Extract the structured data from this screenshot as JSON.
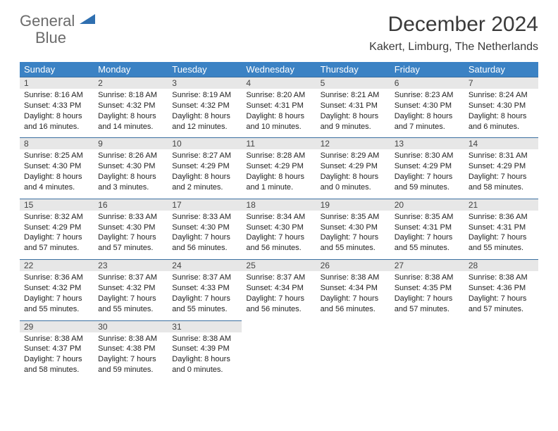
{
  "logo": {
    "word1": "General",
    "word2": "Blue"
  },
  "title": "December 2024",
  "location": "Kakert, Limburg, The Netherlands",
  "colors": {
    "header_bg": "#3b82c4",
    "header_text": "#ffffff",
    "daynum_bg": "#e7e7e7",
    "rule": "#3b6fa0",
    "logo_gray": "#6b6b6b",
    "logo_blue": "#2f78bd"
  },
  "weekdays": [
    "Sunday",
    "Monday",
    "Tuesday",
    "Wednesday",
    "Thursday",
    "Friday",
    "Saturday"
  ],
  "weeks": [
    [
      {
        "n": "1",
        "sr": "8:16 AM",
        "ss": "4:33 PM",
        "dl": "8 hours and 16 minutes."
      },
      {
        "n": "2",
        "sr": "8:18 AM",
        "ss": "4:32 PM",
        "dl": "8 hours and 14 minutes."
      },
      {
        "n": "3",
        "sr": "8:19 AM",
        "ss": "4:32 PM",
        "dl": "8 hours and 12 minutes."
      },
      {
        "n": "4",
        "sr": "8:20 AM",
        "ss": "4:31 PM",
        "dl": "8 hours and 10 minutes."
      },
      {
        "n": "5",
        "sr": "8:21 AM",
        "ss": "4:31 PM",
        "dl": "8 hours and 9 minutes."
      },
      {
        "n": "6",
        "sr": "8:23 AM",
        "ss": "4:30 PM",
        "dl": "8 hours and 7 minutes."
      },
      {
        "n": "7",
        "sr": "8:24 AM",
        "ss": "4:30 PM",
        "dl": "8 hours and 6 minutes."
      }
    ],
    [
      {
        "n": "8",
        "sr": "8:25 AM",
        "ss": "4:30 PM",
        "dl": "8 hours and 4 minutes."
      },
      {
        "n": "9",
        "sr": "8:26 AM",
        "ss": "4:30 PM",
        "dl": "8 hours and 3 minutes."
      },
      {
        "n": "10",
        "sr": "8:27 AM",
        "ss": "4:29 PM",
        "dl": "8 hours and 2 minutes."
      },
      {
        "n": "11",
        "sr": "8:28 AM",
        "ss": "4:29 PM",
        "dl": "8 hours and 1 minute."
      },
      {
        "n": "12",
        "sr": "8:29 AM",
        "ss": "4:29 PM",
        "dl": "8 hours and 0 minutes."
      },
      {
        "n": "13",
        "sr": "8:30 AM",
        "ss": "4:29 PM",
        "dl": "7 hours and 59 minutes."
      },
      {
        "n": "14",
        "sr": "8:31 AM",
        "ss": "4:29 PM",
        "dl": "7 hours and 58 minutes."
      }
    ],
    [
      {
        "n": "15",
        "sr": "8:32 AM",
        "ss": "4:29 PM",
        "dl": "7 hours and 57 minutes."
      },
      {
        "n": "16",
        "sr": "8:33 AM",
        "ss": "4:30 PM",
        "dl": "7 hours and 57 minutes."
      },
      {
        "n": "17",
        "sr": "8:33 AM",
        "ss": "4:30 PM",
        "dl": "7 hours and 56 minutes."
      },
      {
        "n": "18",
        "sr": "8:34 AM",
        "ss": "4:30 PM",
        "dl": "7 hours and 56 minutes."
      },
      {
        "n": "19",
        "sr": "8:35 AM",
        "ss": "4:30 PM",
        "dl": "7 hours and 55 minutes."
      },
      {
        "n": "20",
        "sr": "8:35 AM",
        "ss": "4:31 PM",
        "dl": "7 hours and 55 minutes."
      },
      {
        "n": "21",
        "sr": "8:36 AM",
        "ss": "4:31 PM",
        "dl": "7 hours and 55 minutes."
      }
    ],
    [
      {
        "n": "22",
        "sr": "8:36 AM",
        "ss": "4:32 PM",
        "dl": "7 hours and 55 minutes."
      },
      {
        "n": "23",
        "sr": "8:37 AM",
        "ss": "4:32 PM",
        "dl": "7 hours and 55 minutes."
      },
      {
        "n": "24",
        "sr": "8:37 AM",
        "ss": "4:33 PM",
        "dl": "7 hours and 55 minutes."
      },
      {
        "n": "25",
        "sr": "8:37 AM",
        "ss": "4:34 PM",
        "dl": "7 hours and 56 minutes."
      },
      {
        "n": "26",
        "sr": "8:38 AM",
        "ss": "4:34 PM",
        "dl": "7 hours and 56 minutes."
      },
      {
        "n": "27",
        "sr": "8:38 AM",
        "ss": "4:35 PM",
        "dl": "7 hours and 57 minutes."
      },
      {
        "n": "28",
        "sr": "8:38 AM",
        "ss": "4:36 PM",
        "dl": "7 hours and 57 minutes."
      }
    ],
    [
      {
        "n": "29",
        "sr": "8:38 AM",
        "ss": "4:37 PM",
        "dl": "7 hours and 58 minutes."
      },
      {
        "n": "30",
        "sr": "8:38 AM",
        "ss": "4:38 PM",
        "dl": "7 hours and 59 minutes."
      },
      {
        "n": "31",
        "sr": "8:38 AM",
        "ss": "4:39 PM",
        "dl": "8 hours and 0 minutes."
      },
      null,
      null,
      null,
      null
    ]
  ],
  "labels": {
    "sunrise": "Sunrise: ",
    "sunset": "Sunset: ",
    "daylight": "Daylight: "
  }
}
